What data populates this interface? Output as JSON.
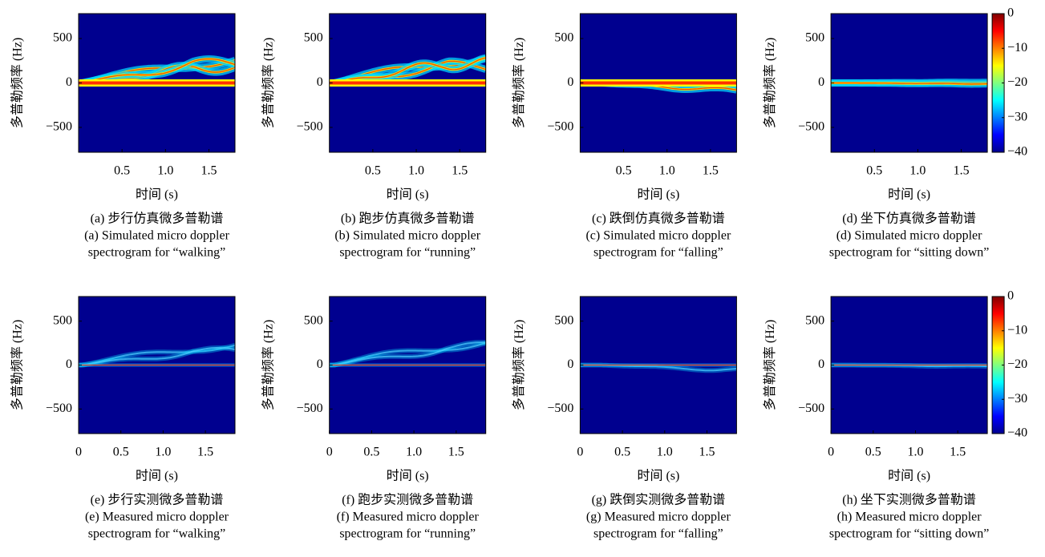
{
  "panels": [
    {
      "ylabel": "多普勒频率 (Hz)",
      "xlabel": "时间 (s)",
      "xlim": [
        0,
        1.8
      ],
      "xticks": [
        0.5,
        {
          "value": 1,
          "label": "1.0"
        },
        1.5
      ],
      "ylim": [
        -780,
        780
      ],
      "yticks": [
        {
          "value": 500,
          "label": "500"
        },
        0,
        {
          "value": -500,
          "label": "−500"
        }
      ],
      "caption": [
        "(a) 步行仿真微多普勒谱",
        "(a) Simulated micro doppler",
        "spectrogram for “walking”"
      ]
    },
    {
      "ylabel": "多普勒频率 (Hz)",
      "xlabel": "时间 (s)",
      "xlim": [
        0,
        1.8
      ],
      "xticks": [
        0.5,
        {
          "value": 1,
          "label": "1.0"
        },
        1.5
      ],
      "ylim": [
        -780,
        780
      ],
      "yticks": [
        {
          "value": 500,
          "label": "500"
        },
        0,
        {
          "value": -500,
          "label": "−500"
        }
      ],
      "caption": [
        "(b) 跑步仿真微多普勒谱",
        "(b) Simulated micro doppler",
        "spectrogram for “running”"
      ]
    },
    {
      "ylabel": "多普勒频率 (Hz)",
      "xlabel": "时间 (s)",
      "xlim": [
        0,
        1.8
      ],
      "xticks": [
        0.5,
        {
          "value": 1,
          "label": "1.0"
        },
        1.5
      ],
      "ylim": [
        -780,
        780
      ],
      "yticks": [
        {
          "value": 500,
          "label": "500"
        },
        0,
        {
          "value": -500,
          "label": "−500"
        }
      ],
      "caption": [
        "(c) 跌倒仿真微多普勒谱",
        "(c) Simulated micro doppler",
        "spectrogram for “falling”"
      ]
    },
    {
      "ylabel": "多普勒频率 (Hz)",
      "xlabel": "时间 (s)",
      "xlim": [
        0,
        1.8
      ],
      "xticks": [
        0.5,
        {
          "value": 1,
          "label": "1.0"
        },
        1.5
      ],
      "ylim": [
        -780,
        780
      ],
      "yticks": [
        {
          "value": 500,
          "label": "500"
        },
        0,
        {
          "value": -500,
          "label": "−500"
        }
      ],
      "caption": [
        "(d) 坐下仿真微多普勒谱",
        "(d) Simulated micro doppler",
        "spectrogram for “sitting down”"
      ],
      "colorbar": {
        "clim": [
          -40,
          0
        ],
        "ticks": [
          0,
          {
            "value": -10,
            "label": "−10"
          },
          {
            "value": -20,
            "label": "−20"
          },
          {
            "value": -30,
            "label": "−30"
          },
          {
            "value": -40,
            "label": "−40"
          }
        ]
      }
    },
    {
      "ylabel": "多普勒频率 (Hz)",
      "xlabel": "时间 (s)",
      "xlim": [
        0,
        1.85
      ],
      "xticks": [
        0,
        0.5,
        {
          "value": 1,
          "label": "1.0"
        },
        1.5
      ],
      "ylim": [
        -780,
        780
      ],
      "yticks": [
        {
          "value": 500,
          "label": "500"
        },
        0,
        {
          "value": -500,
          "label": "−500"
        }
      ],
      "caption": [
        "(e) 步行实测微多普勒谱",
        "(e) Measured micro doppler",
        "spectrogram for “walking”"
      ]
    },
    {
      "ylabel": "多普勒频率 (Hz)",
      "xlabel": "时间 (s)",
      "xlim": [
        0,
        1.85
      ],
      "xticks": [
        0,
        0.5,
        {
          "value": 1,
          "label": "1.0"
        },
        1.5
      ],
      "ylim": [
        -780,
        780
      ],
      "yticks": [
        {
          "value": 500,
          "label": "500"
        },
        0,
        {
          "value": -500,
          "label": "−500"
        }
      ],
      "caption": [
        "(f) 跑步实测微多普勒谱",
        "(f) Measured micro doppler",
        "spectrogram for “running”"
      ]
    },
    {
      "ylabel": "多普勒频率 (Hz)",
      "xlabel": "时间 (s)",
      "xlim": [
        0,
        1.85
      ],
      "xticks": [
        0,
        0.5,
        {
          "value": 1,
          "label": "1.0"
        },
        1.5
      ],
      "ylim": [
        -780,
        780
      ],
      "yticks": [
        {
          "value": 500,
          "label": "500"
        },
        0,
        {
          "value": -500,
          "label": "−500"
        }
      ],
      "caption": [
        "(g) 跌倒实测微多普勒谱",
        "(g) Measured micro doppler",
        "spectrogram for “falling”"
      ]
    },
    {
      "ylabel": "多普勒频率 (Hz)",
      "xlabel": "时间 (s)",
      "xlim": [
        0,
        1.85
      ],
      "xticks": [
        0,
        0.5,
        {
          "value": 1,
          "label": "1.0"
        },
        1.5
      ],
      "ylim": [
        -780,
        780
      ],
      "yticks": [
        {
          "value": 500,
          "label": "500"
        },
        0,
        {
          "value": -500,
          "label": "−500"
        }
      ],
      "caption": [
        "(h) 坐下实测微多普勒谱",
        "(h) Measured micro doppler",
        "spectrogram for “sitting down”"
      ],
      "colorbar": {
        "clim": [
          -40,
          0
        ],
        "ticks": [
          0,
          {
            "value": -10,
            "label": "−10"
          },
          {
            "value": -20,
            "label": "−20"
          },
          {
            "value": -30,
            "label": "−30"
          },
          {
            "value": -40,
            "label": "−40"
          }
        ]
      }
    }
  ]
}
